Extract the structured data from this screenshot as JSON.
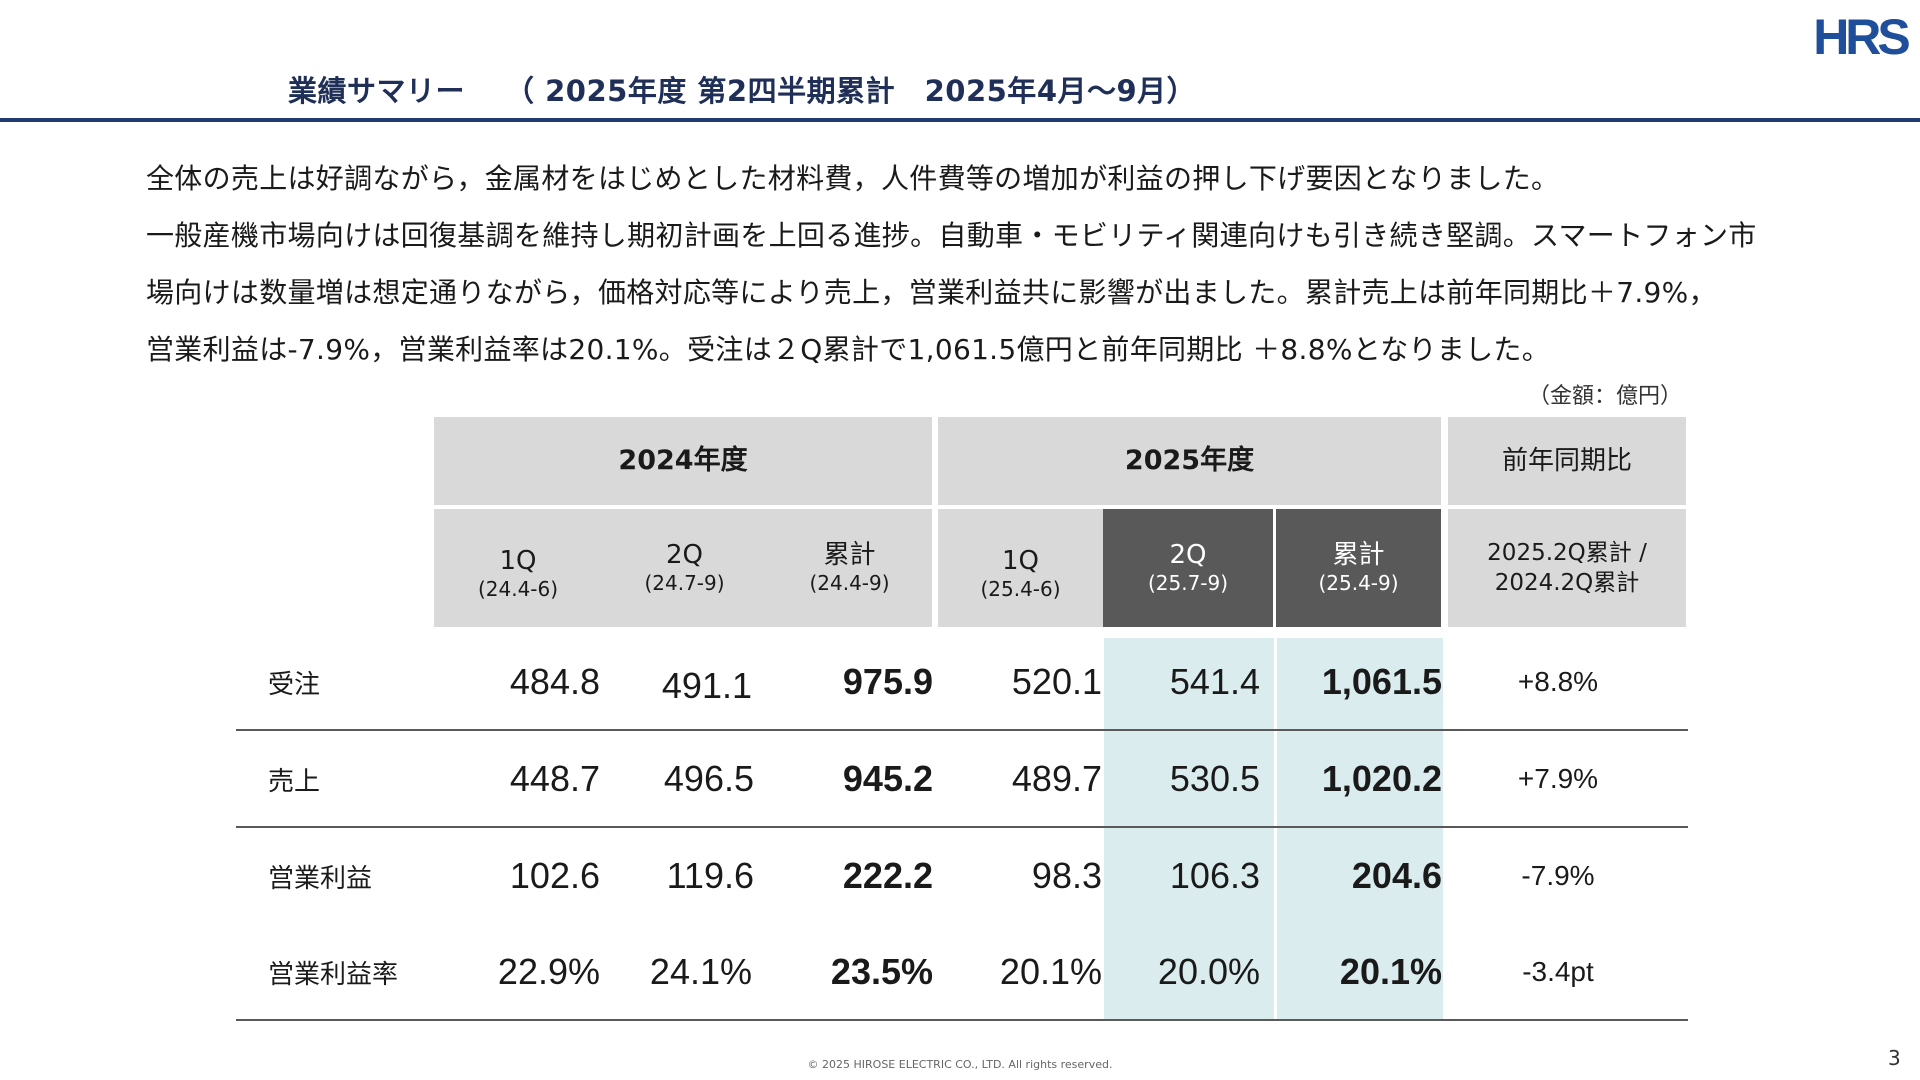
{
  "header": {
    "title": "業績サマリー",
    "subtitle": "（ 2025年度 第2四半期累計　2025年4月～9月）",
    "logo_text": "HRS"
  },
  "body": {
    "lines": [
      "全体の売上は好調ながら，金属材をはじめとした材料費，人件費等の増加が利益の押し下げ要因となりました。",
      "一般産機市場向けは回復基調を維持し期初計画を上回る進捗。自動車・モビリティ関連向けも引き続き堅調。スマートフォン市",
      "場向けは数量増は想定通りながら，価格対応等により売上，営業利益共に影響が出ました。累計売上は前年同期比＋7.9%，",
      "営業利益は-7.9%，営業利益率は20.1%。受注は２Q累計で1,061.5億円と前年同期比 ＋8.8%となりました。"
    ]
  },
  "table": {
    "unit": "（金額：億円）",
    "years": {
      "fy2024": "2024年度",
      "fy2025": "2025年度",
      "yoy": "前年同期比"
    },
    "columns": [
      {
        "label": "1Q",
        "period": "(24.4-6)"
      },
      {
        "label": "2Q",
        "period": "(24.7-9)"
      },
      {
        "label": "累計",
        "period": "(24.4-9)"
      },
      {
        "label": "1Q",
        "period": "(25.4-6)"
      },
      {
        "label": "2Q",
        "period": "(25.7-9)"
      },
      {
        "label": "累計",
        "period": "(25.4-9)"
      }
    ],
    "yoy_header": {
      "line1": "2025.2Q累計 /",
      "line2": "2024.2Q累計"
    },
    "rows": [
      {
        "label": "受注",
        "values": [
          "484.8",
          "491.1",
          "975.9",
          "520.1",
          "541.4",
          "1,061.5"
        ],
        "yoy": "+8.8%"
      },
      {
        "label": "売上",
        "values": [
          "448.7",
          "496.5",
          "945.2",
          "489.7",
          "530.5",
          "1,020.2"
        ],
        "yoy": "+7.9%"
      },
      {
        "label": "営業利益",
        "values": [
          "102.6",
          "119.6",
          "222.2",
          "98.3",
          "106.3",
          "204.6"
        ],
        "yoy": "-7.9%"
      },
      {
        "label": "営業利益率",
        "values": [
          "22.9%",
          "24.1%",
          "23.5%",
          "20.1%",
          "20.0%",
          "20.1%"
        ],
        "yoy": "-3.4pt"
      }
    ]
  },
  "footer": {
    "copyright": "© 2025 HIROSE ELECTRIC CO., LTD. All rights reserved.",
    "page": "3"
  },
  "colors": {
    "title": "#1f2f57",
    "rule": "#1f3a73",
    "header_gray": "#d9d9d9",
    "header_dark": "#595959",
    "highlight": "#dbecee",
    "logo": "#1f4e9a"
  }
}
